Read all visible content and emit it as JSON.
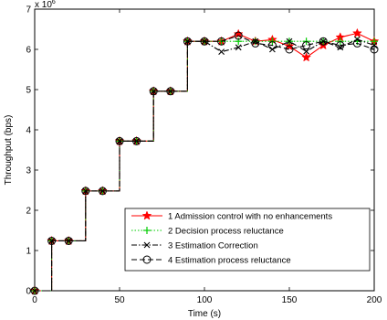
{
  "chart_data": {
    "type": "line",
    "xlabel": "Time (s)",
    "ylabel": "Throughput (bps)",
    "y_multiplier_label": "x 10",
    "y_multiplier_exp": "6",
    "xlim": [
      0,
      200
    ],
    "ylim": [
      0,
      7
    ],
    "x_ticks": [
      0,
      50,
      100,
      150,
      200
    ],
    "y_ticks": [
      0,
      1,
      2,
      3,
      4,
      5,
      6,
      7
    ],
    "grid": false,
    "legend_position": "lower-right",
    "series": [
      {
        "name": "1 Admission control with no enhancements",
        "color": "#ff0000",
        "line": "solid",
        "marker": "star",
        "x": [
          0,
          10,
          20,
          30,
          40,
          50,
          60,
          70,
          80,
          90,
          100,
          110,
          120,
          130,
          140,
          150,
          160,
          170,
          180,
          190,
          200
        ],
        "y": [
          0,
          1.24,
          1.24,
          2.48,
          2.48,
          3.72,
          3.72,
          4.96,
          4.96,
          6.2,
          6.2,
          6.2,
          6.38,
          6.2,
          6.24,
          6.08,
          5.8,
          6.1,
          6.3,
          6.4,
          6.2
        ]
      },
      {
        "name": "2 Decision process reluctance",
        "color": "#00cc00",
        "line": "dotted",
        "marker": "plus",
        "x": [
          0,
          10,
          20,
          30,
          40,
          50,
          60,
          70,
          80,
          90,
          100,
          110,
          120,
          130,
          140,
          150,
          160,
          170,
          180,
          190,
          200
        ],
        "y": [
          0,
          1.24,
          1.24,
          2.48,
          2.48,
          3.72,
          3.72,
          4.96,
          4.96,
          6.2,
          6.2,
          6.2,
          6.2,
          6.2,
          6.2,
          6.2,
          6.2,
          6.2,
          6.2,
          6.2,
          6.2
        ]
      },
      {
        "name": "3 Estimation Correction",
        "color": "#000000",
        "line": "dashdot",
        "marker": "x",
        "x": [
          0,
          10,
          20,
          30,
          40,
          50,
          60,
          70,
          80,
          90,
          100,
          110,
          120,
          130,
          140,
          150,
          160,
          170,
          180,
          190,
          200
        ],
        "y": [
          0,
          1.24,
          1.24,
          2.48,
          2.48,
          3.72,
          3.72,
          4.96,
          4.96,
          6.2,
          6.2,
          5.94,
          6.05,
          6.2,
          6.0,
          6.2,
          5.95,
          6.2,
          6.05,
          6.25,
          6.1
        ]
      },
      {
        "name": "4 Estimation process reluctance",
        "color": "#000000",
        "line": "dashed",
        "marker": "circle",
        "x": [
          0,
          10,
          20,
          30,
          40,
          50,
          60,
          70,
          80,
          90,
          100,
          110,
          120,
          130,
          140,
          150,
          160,
          170,
          180,
          190,
          200
        ],
        "y": [
          0,
          1.24,
          1.24,
          2.48,
          2.48,
          3.72,
          3.72,
          4.96,
          4.96,
          6.2,
          6.2,
          6.2,
          6.34,
          6.15,
          6.1,
          6.0,
          6.1,
          6.2,
          6.1,
          6.15,
          6.0
        ]
      }
    ]
  }
}
